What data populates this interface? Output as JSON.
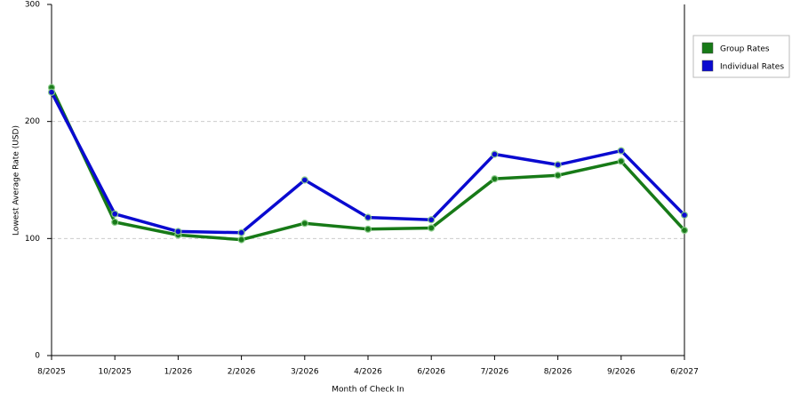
{
  "chart_data": {
    "type": "line",
    "x_label": "Month of Check In",
    "y_label": "Lowest Average Rate (USD)",
    "categories": [
      "8/2025",
      "10/2025",
      "1/2026",
      "2/2026",
      "3/2026",
      "4/2026",
      "6/2026",
      "7/2026",
      "8/2026",
      "9/2026",
      "6/2027"
    ],
    "series": [
      {
        "name": "Group Rates",
        "color": "#177a17",
        "values": [
          229,
          114,
          103,
          99,
          113,
          108,
          109,
          151,
          154,
          166,
          107
        ]
      },
      {
        "name": "Individual Rates",
        "color": "#0a0ad0",
        "values": [
          225,
          121,
          106,
          105,
          150,
          118,
          116,
          172,
          163,
          175,
          120
        ]
      }
    ],
    "ylim": [
      0,
      300
    ],
    "yticks": [
      0,
      100,
      200,
      300
    ],
    "grid": true,
    "legend": "right"
  }
}
